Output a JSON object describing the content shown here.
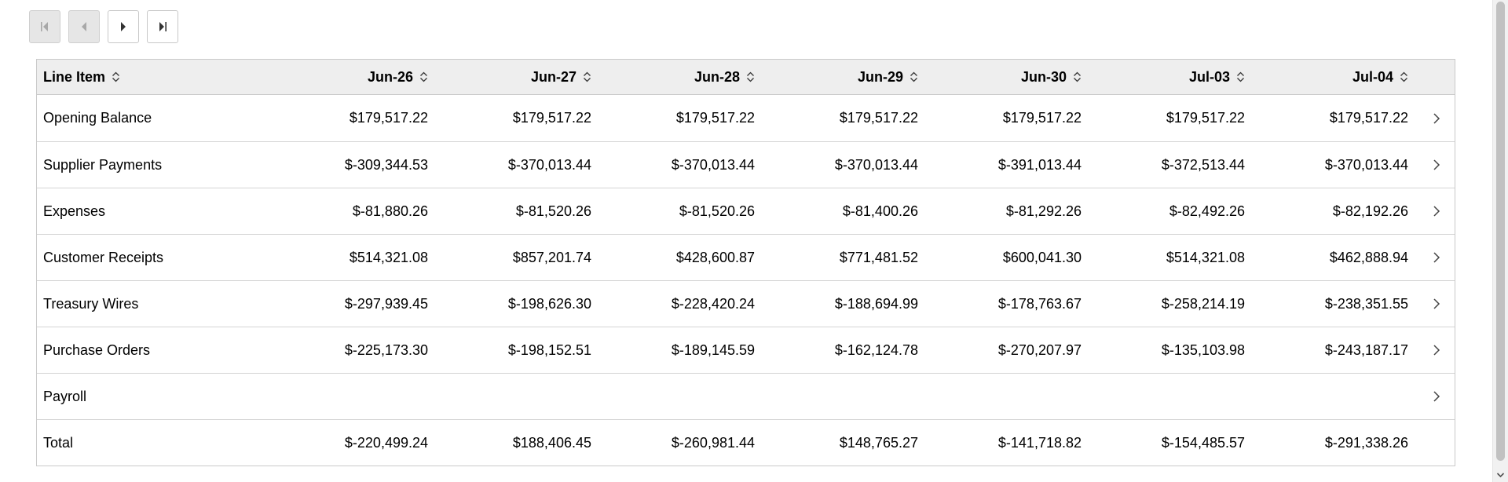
{
  "pager": {
    "buttons": [
      {
        "name": "first-page",
        "icon": "first-page-icon",
        "disabled": true
      },
      {
        "name": "previous-page",
        "icon": "previous-page-icon",
        "disabled": true
      },
      {
        "name": "next-page",
        "icon": "next-page-icon",
        "disabled": false
      },
      {
        "name": "last-page",
        "icon": "last-page-icon",
        "disabled": false
      }
    ]
  },
  "table": {
    "headers": [
      "Line Item",
      "Jun-26",
      "Jun-27",
      "Jun-28",
      "Jun-29",
      "Jun-30",
      "Jul-03",
      "Jul-04"
    ],
    "rows": [
      {
        "label": "Opening Balance",
        "values": [
          "$179,517.22",
          "$179,517.22",
          "$179,517.22",
          "$179,517.22",
          "$179,517.22",
          "$179,517.22",
          "$179,517.22"
        ],
        "expandable": true
      },
      {
        "label": "Supplier Payments",
        "values": [
          "$-309,344.53",
          "$-370,013.44",
          "$-370,013.44",
          "$-370,013.44",
          "$-391,013.44",
          "$-372,513.44",
          "$-370,013.44"
        ],
        "expandable": true
      },
      {
        "label": "Expenses",
        "values": [
          "$-81,880.26",
          "$-81,520.26",
          "$-81,520.26",
          "$-81,400.26",
          "$-81,292.26",
          "$-82,492.26",
          "$-82,192.26"
        ],
        "expandable": true
      },
      {
        "label": "Customer Receipts",
        "values": [
          "$514,321.08",
          "$857,201.74",
          "$428,600.87",
          "$771,481.52",
          "$600,041.30",
          "$514,321.08",
          "$462,888.94"
        ],
        "expandable": true
      },
      {
        "label": "Treasury Wires",
        "values": [
          "$-297,939.45",
          "$-198,626.30",
          "$-228,420.24",
          "$-188,694.99",
          "$-178,763.67",
          "$-258,214.19",
          "$-238,351.55"
        ],
        "expandable": true
      },
      {
        "label": "Purchase Orders",
        "values": [
          "$-225,173.30",
          "$-198,152.51",
          "$-189,145.59",
          "$-162,124.78",
          "$-270,207.97",
          "$-135,103.98",
          "$-243,187.17"
        ],
        "expandable": true
      },
      {
        "label": "Payroll",
        "values": [
          "",
          "",
          "",
          "",
          "",
          "",
          ""
        ],
        "expandable": true
      },
      {
        "label": "Total",
        "values": [
          "$-220,499.24",
          "$188,406.45",
          "$-260,981.44",
          "$148,765.27",
          "$-141,718.82",
          "$-154,485.57",
          "$-291,338.26"
        ],
        "expandable": false
      }
    ]
  },
  "colors": {
    "header_bg": "#eeeeee",
    "border": "#c9c9c9",
    "disabled_button_bg": "#e6e6e6"
  }
}
